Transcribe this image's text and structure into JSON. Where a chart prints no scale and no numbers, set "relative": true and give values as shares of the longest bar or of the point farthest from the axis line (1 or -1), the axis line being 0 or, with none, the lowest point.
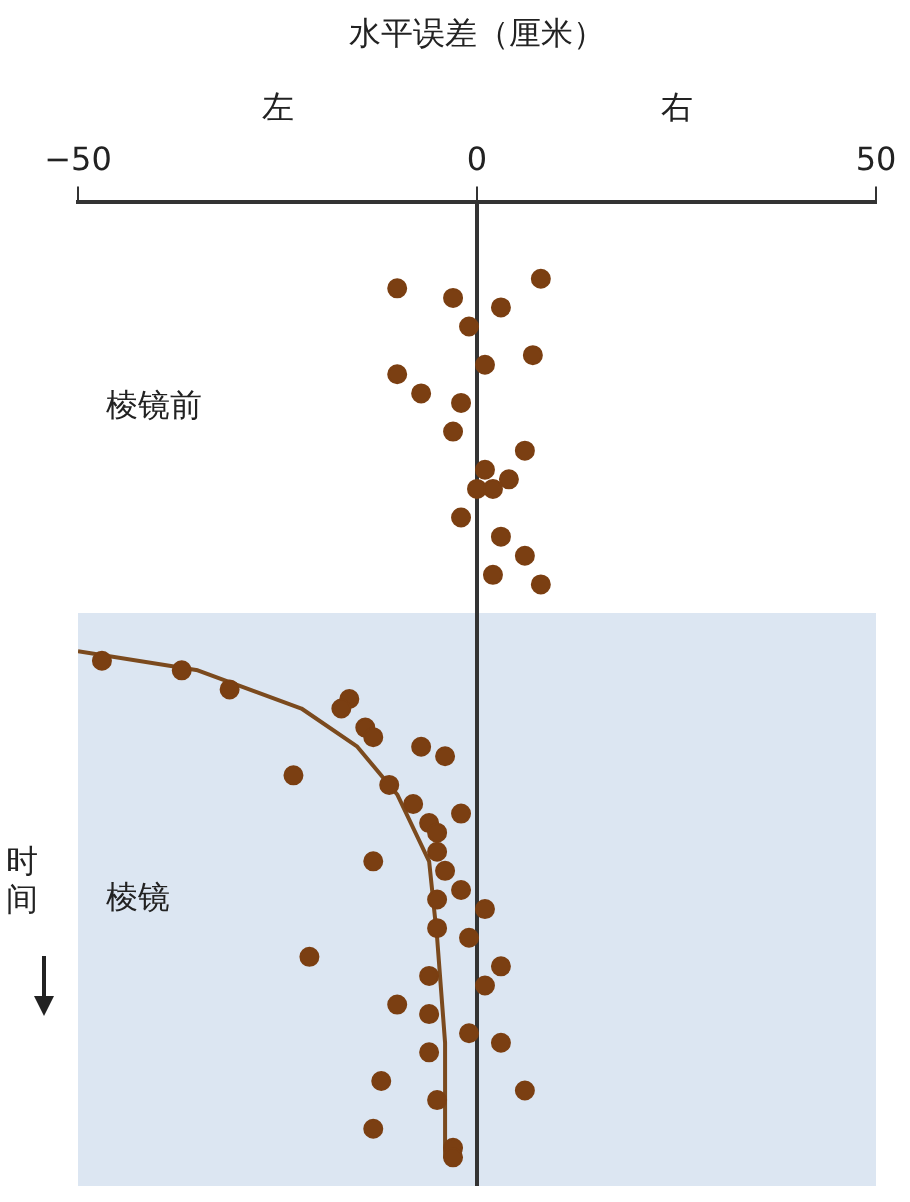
{
  "chart_data": {
    "type": "scatter",
    "xlabel": "水平误差（厘米）",
    "ylabel": "时间",
    "relative": true,
    "annotations": [
      "左",
      "右",
      "棱镜前"
    ],
    "xlim": [
      -50,
      50
    ],
    "xticks": [
      {
        "value": -50,
        "label": "−50"
      },
      0,
      50
    ],
    "grid": false,
    "legend": false,
    "ref_lines": [
      {
        "axis": "x",
        "value": 0,
        "color": "#333333"
      }
    ],
    "bands": [
      {
        "axis": "y",
        "from": -0.43,
        "to": -1.03,
        "label": "棱镜",
        "color": "#dce6f2"
      }
    ],
    "series": [
      {
        "color": "#7b3f12",
        "marker": "circle",
        "x": [
          8,
          -10,
          -3,
          3,
          -1,
          7,
          1,
          -10,
          -7,
          -2,
          -3,
          6,
          1,
          4,
          0,
          2,
          -2,
          3,
          6,
          2,
          8,
          -47,
          -37,
          -31,
          -16,
          -17,
          -14,
          -13,
          -7,
          -4,
          -23,
          -11,
          -8,
          -2,
          -6,
          -5,
          -5,
          -13,
          -4,
          -2,
          -5,
          1,
          -5,
          -1,
          -21,
          3,
          -6,
          1,
          -10,
          -6,
          -1,
          3,
          -6,
          -12,
          6,
          -5,
          -3,
          -13,
          -3
        ],
        "values": [
          -0.08,
          -0.09,
          -0.1,
          -0.11,
          -0.13,
          -0.16,
          -0.17,
          -0.18,
          -0.2,
          -0.21,
          -0.24,
          -0.26,
          -0.28,
          -0.29,
          -0.3,
          -0.3,
          -0.33,
          -0.35,
          -0.37,
          -0.39,
          -0.4,
          -0.48,
          -0.49,
          -0.51,
          -0.52,
          -0.53,
          -0.55,
          -0.56,
          -0.57,
          -0.58,
          -0.6,
          -0.61,
          -0.63,
          -0.64,
          -0.65,
          -0.66,
          -0.68,
          -0.69,
          -0.7,
          -0.72,
          -0.73,
          -0.74,
          -0.76,
          -0.77,
          -0.79,
          -0.8,
          -0.81,
          -0.82,
          -0.84,
          -0.85,
          -0.87,
          -0.88,
          -0.89,
          -0.92,
          -0.93,
          -0.94,
          -0.99,
          -0.97,
          -1.0
        ]
      },
      {
        "type": "line",
        "color": "#7b4a1e",
        "marker": "none",
        "line_style": "solid",
        "x": [
          -50,
          -35,
          -22,
          -15,
          -10,
          -6,
          -5,
          -4,
          -4
        ],
        "values": [
          -0.47,
          -0.49,
          -0.53,
          -0.57,
          -0.62,
          -0.69,
          -0.77,
          -0.88,
          -1.0
        ]
      }
    ]
  }
}
